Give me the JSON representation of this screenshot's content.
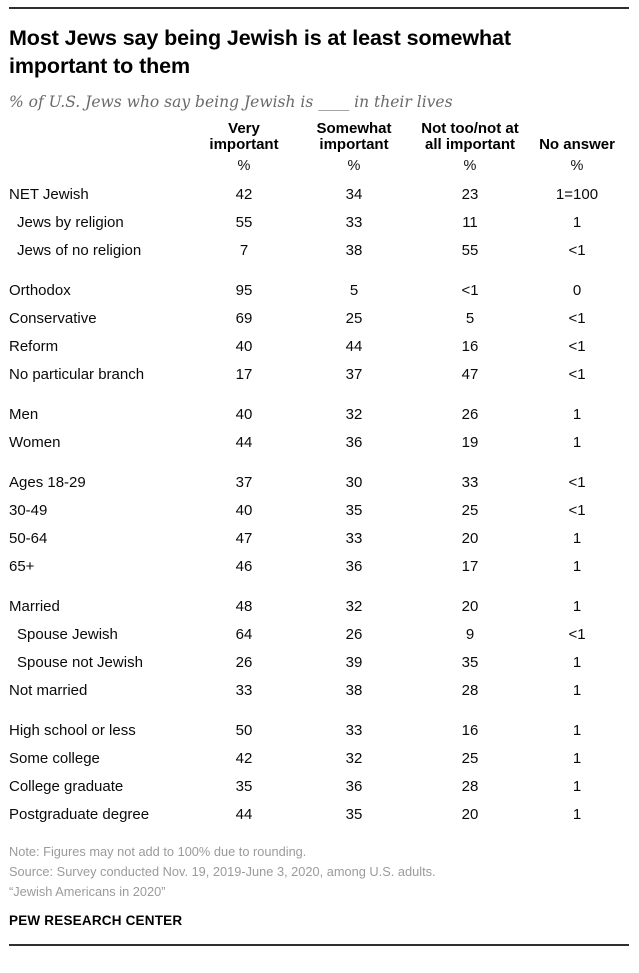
{
  "header": {
    "title": "Most Jews say being Jewish is at least somewhat important to them",
    "subtitle": "% of U.S. Jews who say being Jewish is ____ in their lives"
  },
  "chart_data": {
    "type": "table",
    "title": "Most Jews say being Jewish is at least somewhat important to them",
    "subtitle": "% of U.S. Jews who say being Jewish is ____ in their lives",
    "columns": [
      "Very important",
      "Somewhat important",
      "Not too/not at all important",
      "No answer"
    ],
    "column_labels": [
      "Very\nimportant",
      "Somewhat\nimportant",
      "Not too/not at\nall important",
      "No answer"
    ],
    "unit_row": [
      "%",
      "%",
      "%",
      "%"
    ],
    "groups": [
      {
        "rows": [
          {
            "label": "NET Jewish",
            "indent": false,
            "values": [
              "42",
              "34",
              "23",
              "1=100"
            ]
          },
          {
            "label": "Jews by religion",
            "indent": true,
            "values": [
              "55",
              "33",
              "11",
              "1"
            ]
          },
          {
            "label": "Jews of no religion",
            "indent": true,
            "values": [
              "7",
              "38",
              "55",
              "<1"
            ]
          }
        ]
      },
      {
        "rows": [
          {
            "label": "Orthodox",
            "indent": false,
            "values": [
              "95",
              "5",
              "<1",
              "0"
            ]
          },
          {
            "label": "Conservative",
            "indent": false,
            "values": [
              "69",
              "25",
              "5",
              "<1"
            ]
          },
          {
            "label": "Reform",
            "indent": false,
            "values": [
              "40",
              "44",
              "16",
              "<1"
            ]
          },
          {
            "label": "No particular branch",
            "indent": false,
            "values": [
              "17",
              "37",
              "47",
              "<1"
            ]
          }
        ]
      },
      {
        "rows": [
          {
            "label": "Men",
            "indent": false,
            "values": [
              "40",
              "32",
              "26",
              "1"
            ]
          },
          {
            "label": "Women",
            "indent": false,
            "values": [
              "44",
              "36",
              "19",
              "1"
            ]
          }
        ]
      },
      {
        "rows": [
          {
            "label": "Ages 18-29",
            "indent": false,
            "values": [
              "37",
              "30",
              "33",
              "<1"
            ]
          },
          {
            "label": "30-49",
            "indent": false,
            "values": [
              "40",
              "35",
              "25",
              "<1"
            ]
          },
          {
            "label": "50-64",
            "indent": false,
            "values": [
              "47",
              "33",
              "20",
              "1"
            ]
          },
          {
            "label": "65+",
            "indent": false,
            "values": [
              "46",
              "36",
              "17",
              "1"
            ]
          }
        ]
      },
      {
        "rows": [
          {
            "label": "Married",
            "indent": false,
            "values": [
              "48",
              "32",
              "20",
              "1"
            ]
          },
          {
            "label": "Spouse Jewish",
            "indent": true,
            "values": [
              "64",
              "26",
              "9",
              "<1"
            ]
          },
          {
            "label": "Spouse not Jewish",
            "indent": true,
            "values": [
              "26",
              "39",
              "35",
              "1"
            ]
          },
          {
            "label": "Not married",
            "indent": false,
            "values": [
              "33",
              "38",
              "28",
              "1"
            ]
          }
        ]
      },
      {
        "rows": [
          {
            "label": "High school or less",
            "indent": false,
            "values": [
              "50",
              "33",
              "16",
              "1"
            ]
          },
          {
            "label": "Some college",
            "indent": false,
            "values": [
              "42",
              "32",
              "25",
              "1"
            ]
          },
          {
            "label": "College graduate",
            "indent": false,
            "values": [
              "35",
              "36",
              "28",
              "1"
            ]
          },
          {
            "label": "Postgraduate degree",
            "indent": false,
            "values": [
              "44",
              "35",
              "20",
              "1"
            ]
          }
        ]
      }
    ]
  },
  "footer": {
    "note": "Note: Figures may not add to 100% due to rounding.",
    "source": "Source: Survey conducted Nov. 19, 2019-June 3, 2020, among U.S. adults.",
    "citation": "“Jewish Americans in 2020”",
    "brand": "PEW RESEARCH CENTER"
  }
}
